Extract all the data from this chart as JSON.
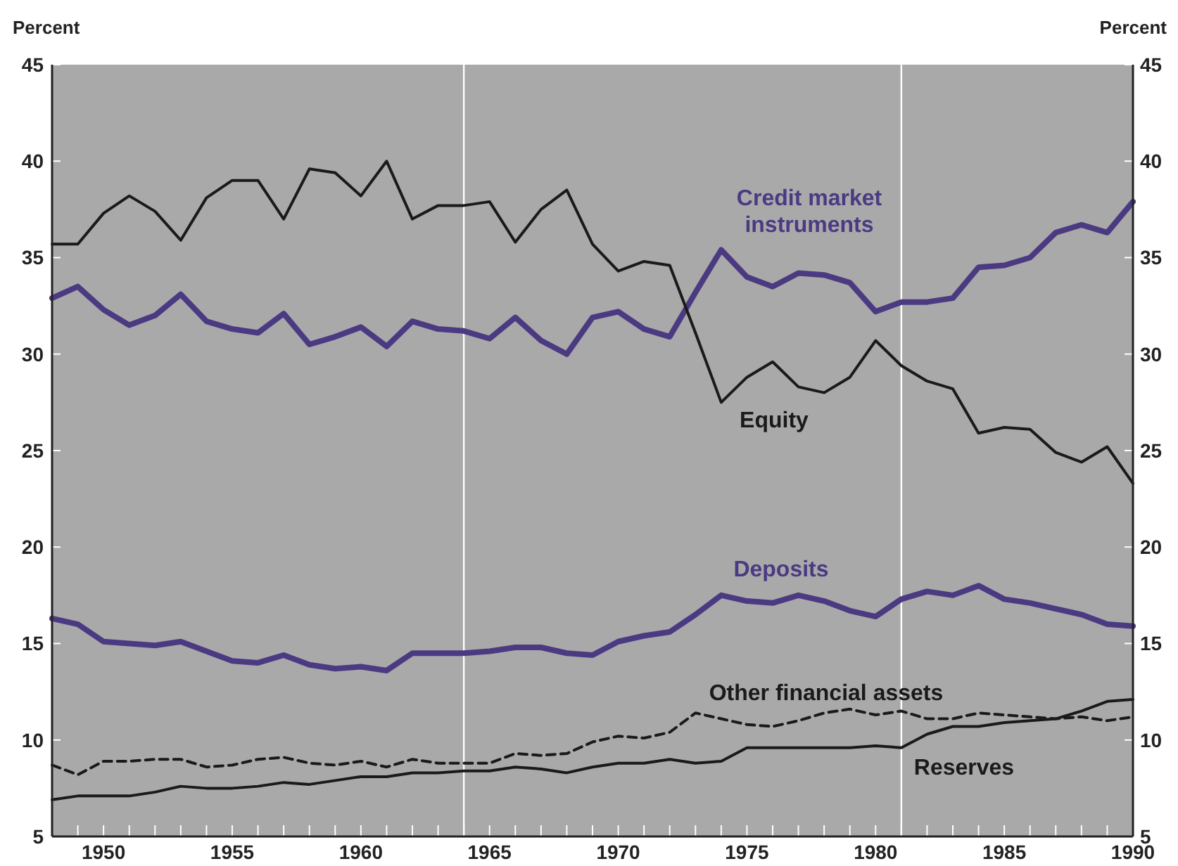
{
  "chart_data": {
    "type": "line",
    "ylabel": "Percent",
    "y2label": "Percent",
    "x": [
      1948,
      1949,
      1950,
      1951,
      1952,
      1953,
      1954,
      1955,
      1956,
      1957,
      1958,
      1959,
      1960,
      1961,
      1962,
      1963,
      1964,
      1965,
      1966,
      1967,
      1968,
      1969,
      1970,
      1971,
      1972,
      1973,
      1974,
      1975,
      1976,
      1977,
      1978,
      1979,
      1980,
      1981,
      1982,
      1983,
      1984,
      1985,
      1986,
      1987,
      1988,
      1989,
      1990
    ],
    "series": [
      {
        "name": "Credit market instruments",
        "color": "#4b3a82",
        "line_style": "solid",
        "values": [
          32.9,
          33.5,
          32.3,
          31.5,
          32.0,
          33.1,
          31.7,
          31.3,
          31.1,
          32.1,
          30.5,
          30.9,
          31.4,
          30.4,
          31.7,
          31.3,
          31.2,
          30.8,
          31.9,
          30.7,
          30.0,
          31.9,
          32.2,
          31.3,
          30.9,
          33.2,
          35.4,
          34.0,
          33.5,
          34.2,
          34.1,
          33.7,
          32.2,
          32.7,
          32.7,
          32.9,
          34.5,
          34.6,
          35.0,
          36.3,
          36.7,
          36.3,
          37.9
        ]
      },
      {
        "name": "Equity",
        "color": "#1a1a1a",
        "line_style": "solid",
        "values": [
          35.7,
          35.7,
          37.3,
          38.2,
          37.4,
          35.9,
          38.1,
          39.0,
          39.0,
          37.0,
          39.6,
          39.4,
          38.2,
          40.0,
          37.0,
          37.7,
          37.7,
          37.9,
          35.8,
          37.5,
          38.5,
          35.7,
          34.3,
          34.8,
          34.6,
          31.1,
          27.5,
          28.8,
          29.6,
          28.3,
          28.0,
          28.8,
          30.7,
          29.4,
          28.6,
          28.2,
          25.9,
          26.2,
          26.1,
          24.9,
          24.4,
          25.2,
          23.3
        ]
      },
      {
        "name": "Deposits",
        "color": "#4b3a82",
        "line_style": "solid",
        "values": [
          16.3,
          16.0,
          15.1,
          15.0,
          14.9,
          15.1,
          14.6,
          14.1,
          14.0,
          14.4,
          13.9,
          13.7,
          13.8,
          13.6,
          14.5,
          14.5,
          14.5,
          14.6,
          14.8,
          14.8,
          14.5,
          14.4,
          15.1,
          15.4,
          15.6,
          16.5,
          17.5,
          17.2,
          17.1,
          17.5,
          17.2,
          16.7,
          16.4,
          17.3,
          17.7,
          17.5,
          18.0,
          17.3,
          17.1,
          16.8,
          16.5,
          16.0,
          15.9
        ]
      },
      {
        "name": "Other financial assets",
        "color": "#1a1a1a",
        "line_style": "dashed",
        "values": [
          8.7,
          8.2,
          8.9,
          8.9,
          9.0,
          9.0,
          8.6,
          8.7,
          9.0,
          9.1,
          8.8,
          8.7,
          8.9,
          8.6,
          9.0,
          8.8,
          8.8,
          8.8,
          9.3,
          9.2,
          9.3,
          9.9,
          10.2,
          10.1,
          10.4,
          11.4,
          11.1,
          10.8,
          10.7,
          11.0,
          11.4,
          11.6,
          11.3,
          11.5,
          11.1,
          11.1,
          11.4,
          11.3,
          11.2,
          11.1,
          11.2,
          11.0,
          11.2
        ]
      },
      {
        "name": "Reserves",
        "color": "#1a1a1a",
        "line_style": "solid",
        "values": [
          6.9,
          7.1,
          7.1,
          7.1,
          7.3,
          7.6,
          7.5,
          7.5,
          7.6,
          7.8,
          7.7,
          7.9,
          8.1,
          8.1,
          8.3,
          8.3,
          8.4,
          8.4,
          8.6,
          8.5,
          8.3,
          8.6,
          8.8,
          8.8,
          9.0,
          8.8,
          8.9,
          9.6,
          9.6,
          9.6,
          9.6,
          9.6,
          9.7,
          9.6,
          10.3,
          10.7,
          10.7,
          10.9,
          11.0,
          11.1,
          11.5,
          12.0,
          12.1
        ]
      }
    ],
    "xlim": [
      1948,
      1990
    ],
    "xticks": [
      {
        "value": 1948,
        "label": null
      },
      {
        "value": 1949,
        "label": null
      },
      1950,
      {
        "value": 1951,
        "label": null
      },
      {
        "value": 1952,
        "label": null
      },
      {
        "value": 1953,
        "label": null
      },
      {
        "value": 1954,
        "label": null
      },
      1955,
      {
        "value": 1956,
        "label": null
      },
      {
        "value": 1957,
        "label": null
      },
      {
        "value": 1958,
        "label": null
      },
      {
        "value": 1959,
        "label": null
      },
      1960,
      {
        "value": 1961,
        "label": null
      },
      {
        "value": 1962,
        "label": null
      },
      {
        "value": 1963,
        "label": null
      },
      {
        "value": 1964,
        "label": null
      },
      1965,
      {
        "value": 1966,
        "label": null
      },
      {
        "value": 1967,
        "label": null
      },
      {
        "value": 1968,
        "label": null
      },
      {
        "value": 1969,
        "label": null
      },
      1970,
      {
        "value": 1971,
        "label": null
      },
      {
        "value": 1972,
        "label": null
      },
      {
        "value": 1973,
        "label": null
      },
      {
        "value": 1974,
        "label": null
      },
      1975,
      {
        "value": 1976,
        "label": null
      },
      {
        "value": 1977,
        "label": null
      },
      {
        "value": 1978,
        "label": null
      },
      {
        "value": 1979,
        "label": null
      },
      1980,
      {
        "value": 1981,
        "label": null
      },
      {
        "value": 1982,
        "label": null
      },
      {
        "value": 1983,
        "label": null
      },
      {
        "value": 1984,
        "label": null
      },
      1985,
      {
        "value": 1986,
        "label": null
      },
      {
        "value": 1987,
        "label": null
      },
      {
        "value": 1988,
        "label": null
      },
      {
        "value": 1989,
        "label": null
      },
      1990
    ],
    "ylim": [
      5,
      45
    ],
    "yticks": [
      5,
      10,
      15,
      20,
      25,
      30,
      35,
      40,
      45
    ],
    "y2lim": [
      5,
      45
    ],
    "y2ticks": [
      5,
      10,
      15,
      20,
      25,
      30,
      35,
      40,
      45
    ],
    "ref_lines": [
      {
        "axis": "x",
        "value": 1964,
        "color": "#ffffff"
      },
      {
        "axis": "x",
        "value": 1981,
        "color": "#ffffff"
      }
    ],
    "grid": false,
    "legend": false,
    "marker": "none"
  }
}
